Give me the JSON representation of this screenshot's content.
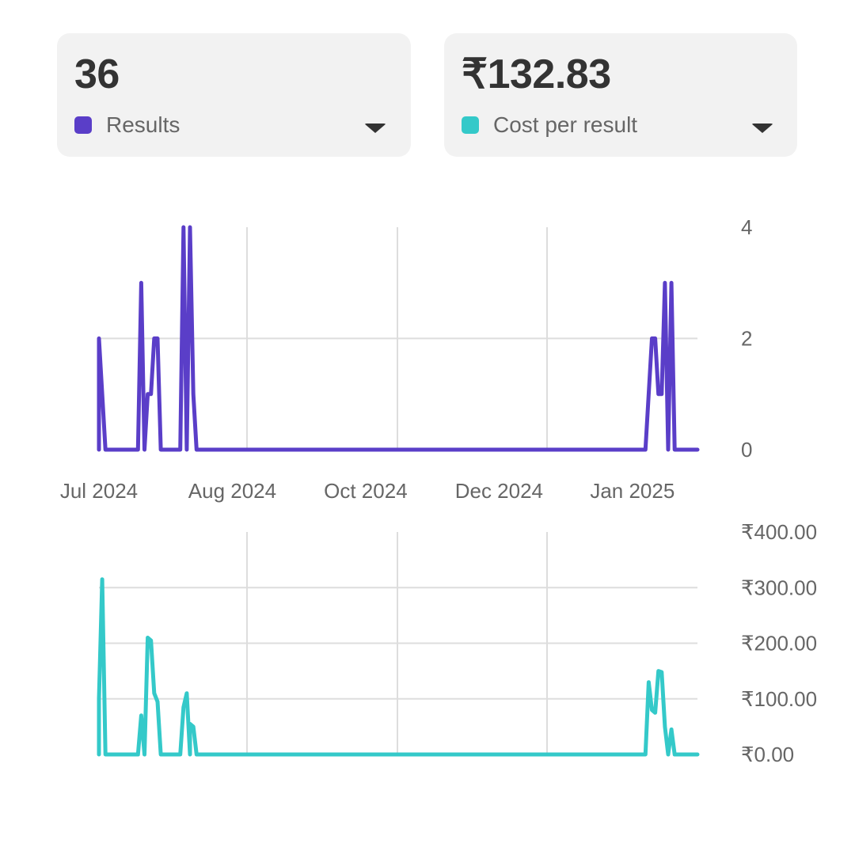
{
  "cards": [
    {
      "value": "36",
      "label": "Results",
      "color": "#5a3ec8",
      "icon": "chevron-down-icon"
    },
    {
      "value": "₹132.83",
      "label": "Cost per result",
      "color": "#34c9c9",
      "icon": "chevron-down-icon"
    }
  ],
  "chart_data": [
    {
      "type": "line",
      "series": [
        {
          "name": "Results",
          "color": "#5a3ec8",
          "points": [
            [
              "2024-06-30",
              0
            ],
            [
              "2024-06-30",
              2
            ],
            [
              "2024-07-02",
              0
            ],
            [
              "2024-07-12",
              0
            ],
            [
              "2024-07-13",
              3
            ],
            [
              "2024-07-14",
              0
            ],
            [
              "2024-07-15",
              1
            ],
            [
              "2024-07-16",
              1
            ],
            [
              "2024-07-17",
              2
            ],
            [
              "2024-07-18",
              2
            ],
            [
              "2024-07-19",
              0
            ],
            [
              "2024-07-25",
              0
            ],
            [
              "2024-07-26",
              4
            ],
            [
              "2024-07-27",
              0
            ],
            [
              "2024-07-28",
              4
            ],
            [
              "2024-07-29",
              1
            ],
            [
              "2024-07-30",
              0
            ],
            [
              "2024-12-15",
              0
            ],
            [
              "2024-12-17",
              2
            ],
            [
              "2024-12-18",
              2
            ],
            [
              "2024-12-19",
              1
            ],
            [
              "2024-12-20",
              1
            ],
            [
              "2024-12-21",
              3
            ],
            [
              "2024-12-22",
              0
            ],
            [
              "2024-12-23",
              3
            ],
            [
              "2024-12-24",
              0
            ],
            [
              "2024-12-31",
              0
            ]
          ]
        }
      ],
      "xlim": [
        "2024-06-30",
        "2024-12-31"
      ],
      "ylim": [
        0,
        4
      ],
      "x_ticks": [
        {
          "date": "2024-06-30",
          "label": "Jul 2024"
        },
        {
          "date": "2024-08-10",
          "label": "Aug 2024"
        },
        {
          "date": "2024-09-20",
          "label": "Oct 2024"
        },
        {
          "date": "2024-10-31",
          "label": "Dec 2024"
        },
        {
          "date": "2024-12-11",
          "label": "Jan 2025"
        }
      ],
      "y_ticks": [
        {
          "value": 4,
          "label": "4"
        },
        {
          "value": 2,
          "label": "2"
        },
        {
          "value": 0,
          "label": "0"
        }
      ],
      "grid": true
    },
    {
      "type": "line",
      "series": [
        {
          "name": "Cost per result",
          "color": "#34c9c9",
          "points": [
            [
              "2024-06-30",
              0
            ],
            [
              "2024-06-30",
              100
            ],
            [
              "2024-07-01",
              315
            ],
            [
              "2024-07-02",
              0
            ],
            [
              "2024-07-12",
              0
            ],
            [
              "2024-07-13",
              70
            ],
            [
              "2024-07-14",
              0
            ],
            [
              "2024-07-15",
              210
            ],
            [
              "2024-07-16",
              205
            ],
            [
              "2024-07-17",
              110
            ],
            [
              "2024-07-18",
              95
            ],
            [
              "2024-07-19",
              0
            ],
            [
              "2024-07-25",
              0
            ],
            [
              "2024-07-26",
              85
            ],
            [
              "2024-07-27",
              110
            ],
            [
              "2024-07-28",
              0
            ],
            [
              "2024-07-28",
              55
            ],
            [
              "2024-07-29",
              50
            ],
            [
              "2024-07-30",
              0
            ],
            [
              "2024-12-15",
              0
            ],
            [
              "2024-12-16",
              130
            ],
            [
              "2024-12-17",
              80
            ],
            [
              "2024-12-18",
              75
            ],
            [
              "2024-12-19",
              150
            ],
            [
              "2024-12-20",
              148
            ],
            [
              "2024-12-21",
              50
            ],
            [
              "2024-12-22",
              0
            ],
            [
              "2024-12-23",
              45
            ],
            [
              "2024-12-24",
              0
            ],
            [
              "2024-12-31",
              0
            ]
          ]
        }
      ],
      "xlim": [
        "2024-06-30",
        "2024-12-31"
      ],
      "ylim": [
        0,
        400
      ],
      "y_ticks": [
        {
          "value": 400,
          "label": "₹400.00"
        },
        {
          "value": 300,
          "label": "₹300.00"
        },
        {
          "value": 200,
          "label": "₹200.00"
        },
        {
          "value": 100,
          "label": "₹100.00"
        },
        {
          "value": 0,
          "label": "₹0.00"
        }
      ],
      "grid": true
    }
  ]
}
